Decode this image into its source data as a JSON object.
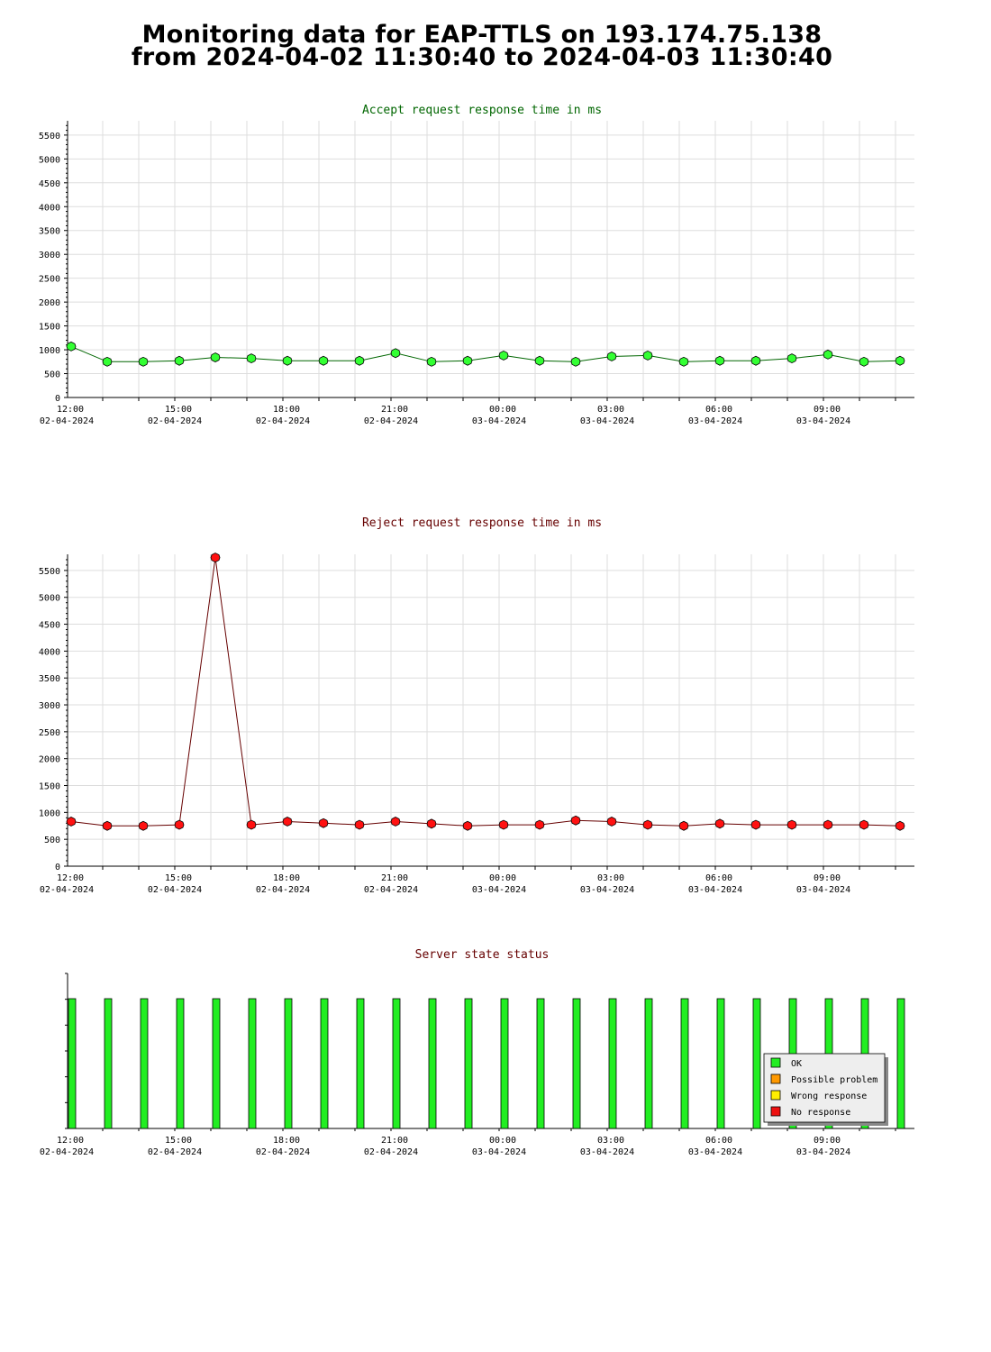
{
  "page": {
    "title_line1": "Monitoring data for EAP-TTLS on 193.174.75.138",
    "title_line2": "from 2024-04-02 11:30:40 to 2024-04-03 11:30:40"
  },
  "colors": {
    "accept_line": "#006600",
    "accept_marker": "#33ff33",
    "reject_line": "#660000",
    "reject_marker": "#ff1111",
    "ok_bar": "#22ee22",
    "grid": "#dddddd",
    "accept_title": "#006600",
    "reject_title": "#660000",
    "status_title": "#660000"
  },
  "chart_data": [
    {
      "type": "line",
      "title": "Accept request response time in ms",
      "x_tick_labels": [
        {
          "time": "12:00",
          "date": "02-04-2024"
        },
        {
          "time": "15:00",
          "date": "02-04-2024"
        },
        {
          "time": "18:00",
          "date": "02-04-2024"
        },
        {
          "time": "21:00",
          "date": "02-04-2024"
        },
        {
          "time": "00:00",
          "date": "03-04-2024"
        },
        {
          "time": "03:00",
          "date": "03-04-2024"
        },
        {
          "time": "06:00",
          "date": "03-04-2024"
        },
        {
          "time": "09:00",
          "date": "03-04-2024"
        }
      ],
      "x": [
        "2024-04-02 12:00",
        "2024-04-02 13:00",
        "2024-04-02 14:00",
        "2024-04-02 15:00",
        "2024-04-02 16:00",
        "2024-04-02 17:00",
        "2024-04-02 18:00",
        "2024-04-02 19:00",
        "2024-04-02 20:00",
        "2024-04-02 21:00",
        "2024-04-02 22:00",
        "2024-04-02 23:00",
        "2024-04-03 00:00",
        "2024-04-03 01:00",
        "2024-04-03 02:00",
        "2024-04-03 03:00",
        "2024-04-03 04:00",
        "2024-04-03 05:00",
        "2024-04-03 06:00",
        "2024-04-03 07:00",
        "2024-04-03 08:00",
        "2024-04-03 09:00",
        "2024-04-03 10:00",
        "2024-04-03 11:00"
      ],
      "values": [
        1070,
        750,
        750,
        770,
        840,
        820,
        770,
        770,
        770,
        930,
        750,
        770,
        880,
        770,
        750,
        860,
        880,
        750,
        770,
        770,
        820,
        900,
        750,
        770
      ],
      "yticks": [
        0,
        500,
        1000,
        1500,
        2000,
        2500,
        3000,
        3500,
        4000,
        4500,
        5000,
        5500
      ],
      "ylim": [
        0,
        5800
      ],
      "grid": true
    },
    {
      "type": "line",
      "title": "Reject request response time in ms",
      "x_tick_labels": [
        {
          "time": "12:00",
          "date": "02-04-2024"
        },
        {
          "time": "15:00",
          "date": "02-04-2024"
        },
        {
          "time": "18:00",
          "date": "02-04-2024"
        },
        {
          "time": "21:00",
          "date": "02-04-2024"
        },
        {
          "time": "00:00",
          "date": "03-04-2024"
        },
        {
          "time": "03:00",
          "date": "03-04-2024"
        },
        {
          "time": "06:00",
          "date": "03-04-2024"
        },
        {
          "time": "09:00",
          "date": "03-04-2024"
        }
      ],
      "x": [
        "2024-04-02 12:00",
        "2024-04-02 13:00",
        "2024-04-02 14:00",
        "2024-04-02 15:00",
        "2024-04-02 16:00",
        "2024-04-02 17:00",
        "2024-04-02 18:00",
        "2024-04-02 19:00",
        "2024-04-02 20:00",
        "2024-04-02 21:00",
        "2024-04-02 22:00",
        "2024-04-02 23:00",
        "2024-04-03 00:00",
        "2024-04-03 01:00",
        "2024-04-03 02:00",
        "2024-04-03 03:00",
        "2024-04-03 04:00",
        "2024-04-03 05:00",
        "2024-04-03 06:00",
        "2024-04-03 07:00",
        "2024-04-03 08:00",
        "2024-04-03 09:00",
        "2024-04-03 10:00",
        "2024-04-03 11:00"
      ],
      "values": [
        830,
        750,
        750,
        770,
        5740,
        770,
        830,
        800,
        770,
        830,
        790,
        750,
        770,
        770,
        850,
        830,
        770,
        750,
        790,
        770,
        770,
        770,
        770,
        750
      ],
      "yticks": [
        0,
        500,
        1000,
        1500,
        2000,
        2500,
        3000,
        3500,
        4000,
        4500,
        5000,
        5500
      ],
      "ylim": [
        0,
        5800
      ],
      "grid": true
    },
    {
      "type": "bar",
      "title": "Server state status",
      "x_tick_labels": [
        {
          "time": "12:00",
          "date": "02-04-2024"
        },
        {
          "time": "15:00",
          "date": "02-04-2024"
        },
        {
          "time": "18:00",
          "date": "02-04-2024"
        },
        {
          "time": "21:00",
          "date": "02-04-2024"
        },
        {
          "time": "00:00",
          "date": "03-04-2024"
        },
        {
          "time": "03:00",
          "date": "03-04-2024"
        },
        {
          "time": "06:00",
          "date": "03-04-2024"
        },
        {
          "time": "09:00",
          "date": "03-04-2024"
        }
      ],
      "x": [
        "2024-04-02 12:00",
        "2024-04-02 13:00",
        "2024-04-02 14:00",
        "2024-04-02 15:00",
        "2024-04-02 16:00",
        "2024-04-02 17:00",
        "2024-04-02 18:00",
        "2024-04-02 19:00",
        "2024-04-02 20:00",
        "2024-04-02 21:00",
        "2024-04-02 22:00",
        "2024-04-02 23:00",
        "2024-04-03 00:00",
        "2024-04-03 01:00",
        "2024-04-03 02:00",
        "2024-04-03 03:00",
        "2024-04-03 04:00",
        "2024-04-03 05:00",
        "2024-04-03 06:00",
        "2024-04-03 07:00",
        "2024-04-03 08:00",
        "2024-04-03 09:00",
        "2024-04-03 10:00",
        "2024-04-03 11:00"
      ],
      "states": [
        "OK",
        "OK",
        "OK",
        "OK",
        "OK",
        "OK",
        "OK",
        "OK",
        "OK",
        "OK",
        "OK",
        "OK",
        "OK",
        "OK",
        "OK",
        "OK",
        "OK",
        "OK",
        "OK",
        "OK",
        "OK",
        "OK",
        "OK",
        "OK"
      ],
      "legend": {
        "placement": "bottom-right",
        "entries": [
          {
            "label": "OK",
            "color": "#22ee22"
          },
          {
            "label": "Possible problem",
            "color": "#ff9900"
          },
          {
            "label": "Wrong response",
            "color": "#ffee00"
          },
          {
            "label": "No response",
            "color": "#ee1111"
          }
        ]
      },
      "grid": false
    }
  ]
}
